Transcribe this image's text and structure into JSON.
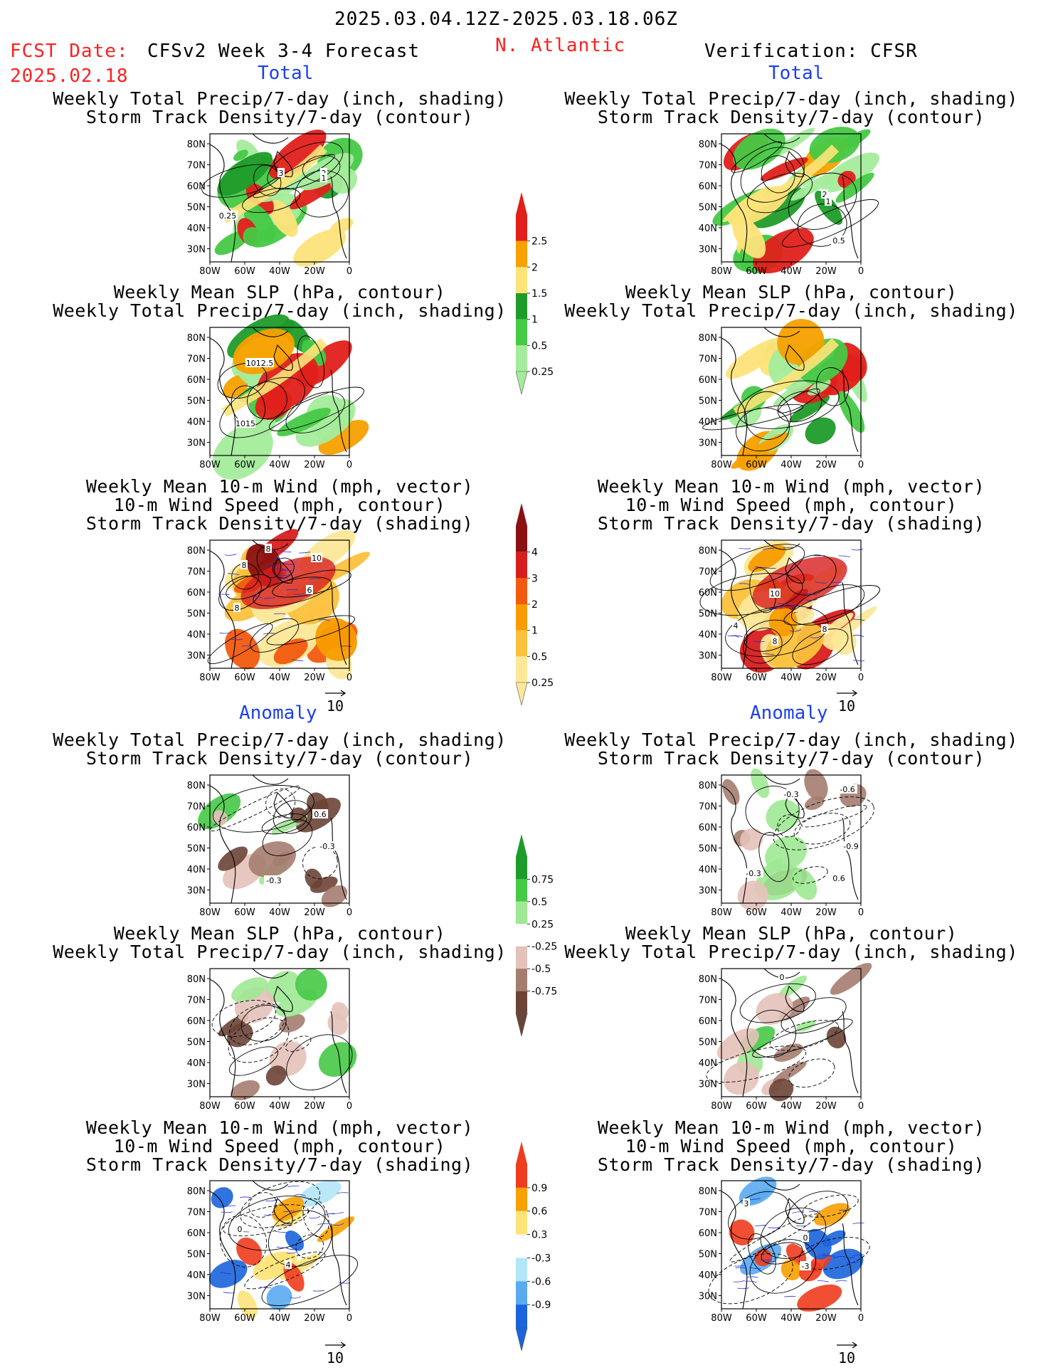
{
  "header": {
    "date_range": "2025.03.04.12Z-2025.03.18.06Z",
    "fcst_label": "FCST Date:",
    "fcst_date": "2025.02.18",
    "model": "CFSv2 Week 3-4 Forecast",
    "region": "N. Atlantic",
    "verification": "Verification: CFSR"
  },
  "sections": {
    "total": "Total",
    "anomaly": "Anomaly"
  },
  "titles": {
    "precip_track": [
      "Weekly Total Precip/7-day (inch, shading)",
      "Storm Track Density/7-day (contour)"
    ],
    "slp_precip": [
      "Weekly Mean SLP (hPa, contour)",
      "Weekly Total Precip/7-day (inch, shading)"
    ],
    "wind_track": [
      "Weekly Mean 10-m Wind (mph, vector)",
      "10-m Wind Speed (mph, contour)",
      "Storm Track Density/7-day (shading)"
    ]
  },
  "axes": {
    "lat_ticks": [
      "80N",
      "70N",
      "60N",
      "50N",
      "40N",
      "30N"
    ],
    "lon_ticks": [
      "80W",
      "60W",
      "40W",
      "20W",
      "0"
    ]
  },
  "vector_ref": "10",
  "panel_labels": {
    "fc_total_precip": [
      "3",
      "2",
      "1",
      "0.25"
    ],
    "fc_total_slp": [
      "1012.5",
      "1015"
    ],
    "fc_total_wind": [
      "8",
      "10",
      "8",
      "6",
      "8"
    ],
    "ob_total_precip": [
      "2",
      "1",
      "0.5"
    ],
    "ob_total_wind": [
      "10",
      "4",
      "8",
      "8"
    ],
    "fc_anom_precip": [
      "0.6",
      "-0.3",
      "-0.3"
    ],
    "ob_anom_precip": [
      "-0.3",
      "-0.6",
      "-0.9",
      "-0.3",
      "0.6"
    ],
    "ob_anom_slp": [
      "0"
    ],
    "fc_anom_wind": [
      "0",
      "4"
    ],
    "ob_anom_wind": [
      "3",
      "0",
      "-3"
    ]
  },
  "colorbars": {
    "precip_total": {
      "labels": [
        "2.5",
        "2",
        "1.5",
        "1",
        "0.5",
        "0.25"
      ],
      "colors": [
        "#e0201a",
        "#f7a000",
        "#fde37a",
        "#1f9b2a",
        "#46c946",
        "#a4ec9c"
      ]
    },
    "track_total": {
      "labels": [
        "4",
        "3",
        "2",
        "1",
        "0.5",
        "0.25"
      ],
      "colors": [
        "#8b1010",
        "#d71e1e",
        "#f25a0f",
        "#f89c00",
        "#fbc13c",
        "#fde898"
      ]
    },
    "precip_anom": {
      "labels": [
        "0.75",
        "0.5",
        "0.25",
        "-0.25",
        "-0.5",
        "-0.75"
      ],
      "colors": [
        "#1e9b2a",
        "#46c946",
        "#9fe894",
        "#ffffff",
        "#e4c2b9",
        "#a57d70",
        "#6b4436"
      ]
    },
    "track_anom": {
      "labels": [
        "0.9",
        "0.6",
        "0.3",
        "-0.3",
        "-0.6",
        "-0.9"
      ],
      "colors": [
        "#f03c1e",
        "#f7a000",
        "#fde37a",
        "#ffffff",
        "#b4e6f8",
        "#5aaaf0",
        "#1a64dc"
      ]
    }
  },
  "chart_data": [
    {
      "type": "heatmap",
      "title": "Weekly Total Precip/7-day (inch, shading)",
      "group": "Total",
      "source": "CFSv2 Week 3-4 Forecast",
      "contour_labels": [
        "3",
        "2",
        "1",
        "0.25"
      ]
    },
    {
      "type": "heatmap",
      "title": "Weekly Mean SLP (hPa, contour)",
      "group": "Total",
      "source": "CFSv2 Week 3-4 Forecast",
      "contour_labels": [
        "1012.5",
        "1015"
      ]
    },
    {
      "type": "heatmap",
      "title": "Weekly Mean 10-m Wind (mph, vector)",
      "group": "Total",
      "source": "CFSv2 Week 3-4 Forecast",
      "contour_labels": [
        "8",
        "10",
        "8",
        "6",
        "8"
      ]
    },
    {
      "type": "heatmap",
      "title": "Weekly Total Precip/7-day (inch, shading)",
      "group": "Total",
      "source": "Verification: CFSR",
      "contour_labels": [
        "2",
        "1",
        "0.5"
      ]
    },
    {
      "type": "heatmap",
      "title": "Weekly Mean SLP (hPa, contour)",
      "group": "Total",
      "source": "Verification: CFSR"
    },
    {
      "type": "heatmap",
      "title": "Weekly Mean 10-m Wind (mph, vector)",
      "group": "Total",
      "source": "Verification: CFSR",
      "contour_labels": [
        "10",
        "4",
        "8",
        "8"
      ]
    },
    {
      "type": "heatmap",
      "title": "Weekly Total Precip/7-day (inch, shading)",
      "group": "Anomaly",
      "source": "CFSv2 Week 3-4 Forecast",
      "contour_labels": [
        "0.6",
        "-0.3",
        "-0.3"
      ]
    },
    {
      "type": "heatmap",
      "title": "Weekly Mean SLP (hPa, contour)",
      "group": "Anomaly",
      "source": "CFSv2 Week 3-4 Forecast"
    },
    {
      "type": "heatmap",
      "title": "Weekly Mean 10-m Wind (mph, vector)",
      "group": "Anomaly",
      "source": "CFSv2 Week 3-4 Forecast",
      "contour_labels": [
        "0",
        "4"
      ]
    },
    {
      "type": "heatmap",
      "title": "Weekly Total Precip/7-day (inch, shading)",
      "group": "Anomaly",
      "source": "Verification: CFSR",
      "contour_labels": [
        "-0.3",
        "-0.6",
        "-0.9",
        "-0.3",
        "0.6"
      ]
    },
    {
      "type": "heatmap",
      "title": "Weekly Mean SLP (hPa, contour)",
      "group": "Anomaly",
      "source": "Verification: CFSR",
      "contour_labels": [
        "0"
      ]
    },
    {
      "type": "heatmap",
      "title": "Weekly Mean 10-m Wind (mph, vector)",
      "group": "Anomaly",
      "source": "Verification: CFSR",
      "contour_labels": [
        "3",
        "0",
        "-3"
      ]
    }
  ]
}
